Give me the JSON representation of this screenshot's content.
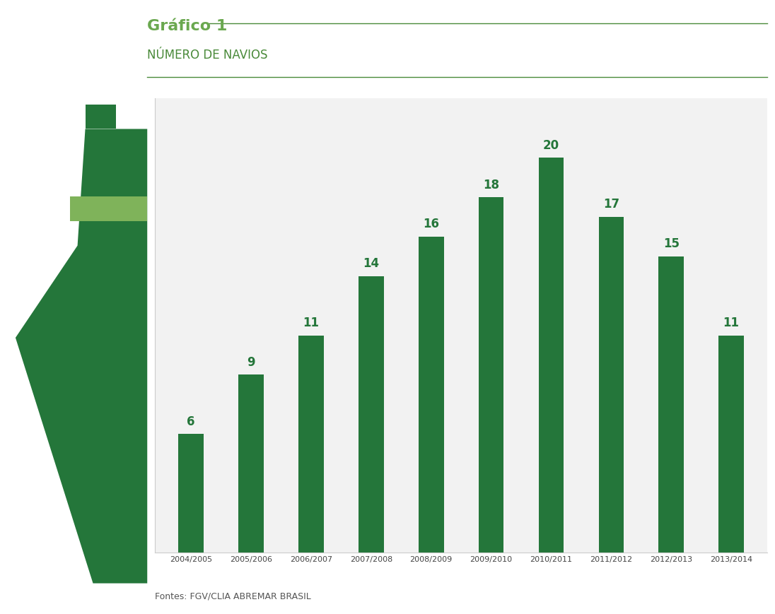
{
  "chart_data": {
    "type": "bar",
    "title": "Gráfico 1",
    "subtitle": "NÚMERO DE NAVIOS",
    "categories": [
      "2004/2005",
      "2005/2006",
      "2006/2007",
      "2007/2008",
      "2008/2009",
      "2009/2010",
      "2010/2011",
      "2011/2012",
      "2012/2013",
      "2013/2014"
    ],
    "values": [
      6,
      9,
      11,
      14,
      16,
      18,
      20,
      17,
      15,
      11
    ],
    "color": "#24763a",
    "ylim": [
      0,
      23
    ],
    "yticks": [],
    "grid": false,
    "data_labels": true,
    "tick_labels": "x",
    "annotations": [
      "Fontes: FGV/CLIA ABREMAR BRASIL"
    ]
  }
}
